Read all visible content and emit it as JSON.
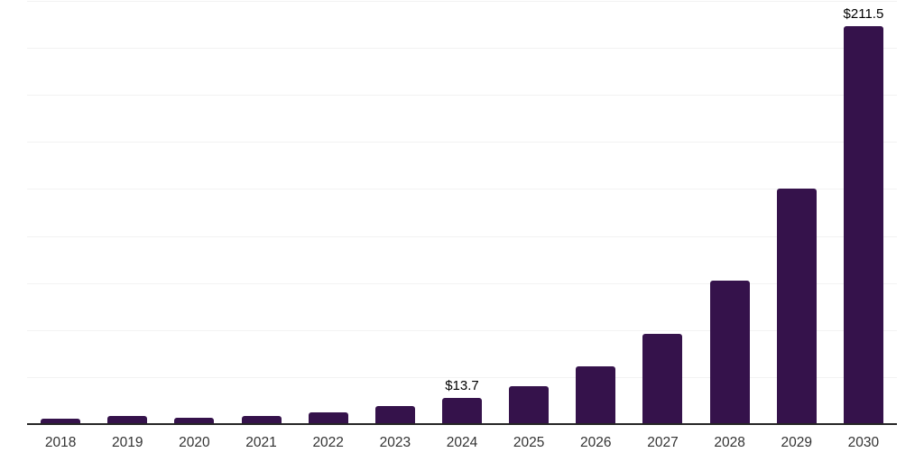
{
  "chart_data": {
    "type": "bar",
    "title": "",
    "xlabel": "",
    "ylabel": "",
    "categories": [
      "2018",
      "2019",
      "2020",
      "2021",
      "2022",
      "2023",
      "2024",
      "2025",
      "2026",
      "2027",
      "2028",
      "2029",
      "2030"
    ],
    "values": [
      2.7,
      4.2,
      3.4,
      4.5,
      6.4,
      9.7,
      13.7,
      20.1,
      30.7,
      48.0,
      76.1,
      125.0,
      211.5
    ],
    "value_labels": [
      "",
      "",
      "",
      "",
      "",
      "",
      "$13.7",
      "",
      "",
      "",
      "",
      "",
      "$211.5"
    ],
    "ylim": [
      0,
      225
    ],
    "gridline_step": 25,
    "grid": "horizontal",
    "y_tick_labels_visible": false,
    "legend": "none"
  },
  "colors": {
    "bar": "#35124b",
    "gridline": "#f2f2f2",
    "axis_line": "#262626",
    "tick_label": "#333333",
    "data_label": "#000000",
    "background": "#ffffff"
  }
}
